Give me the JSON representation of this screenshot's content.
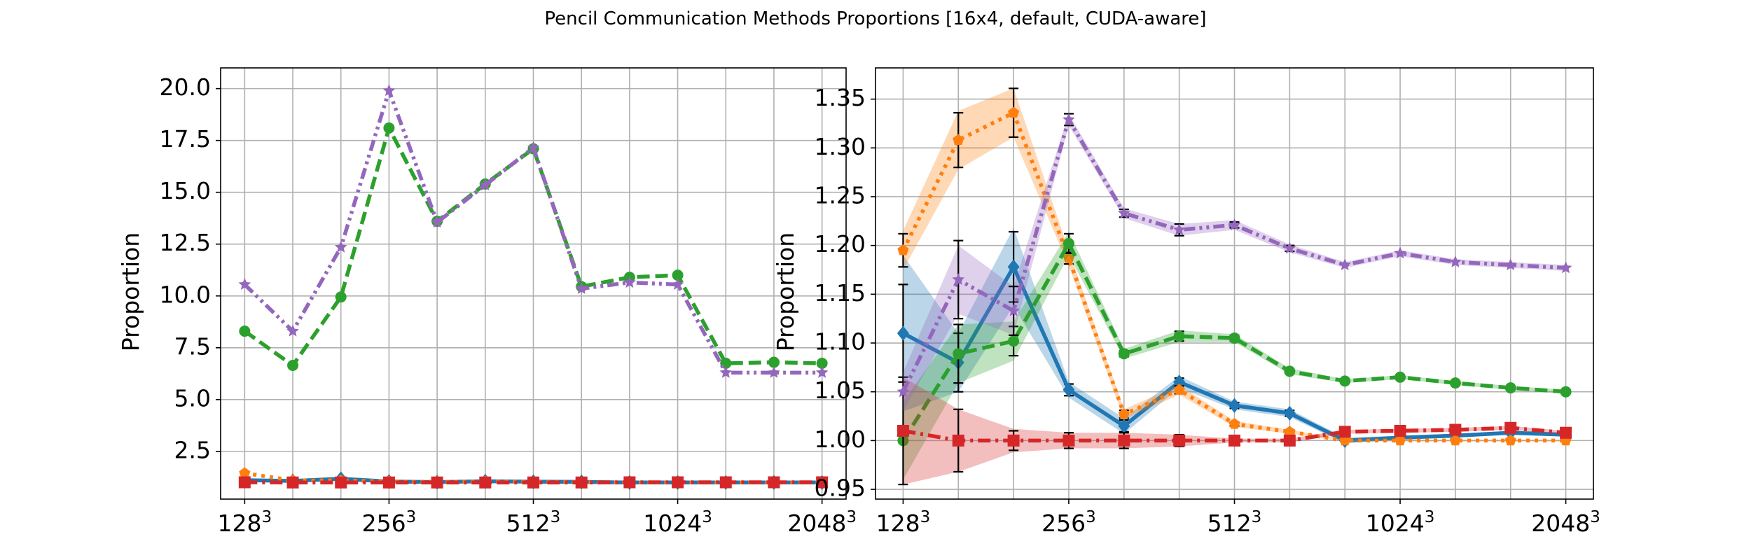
{
  "figure": {
    "title": "Pencil Communication Methods Proportions [16x4, default, CUDA-aware]"
  },
  "colors": {
    "blue": "#1f77b4",
    "orange": "#ff7f0e",
    "green": "#2ca02c",
    "red": "#d62728",
    "purple": "#9467bd"
  },
  "chart_data": [
    {
      "type": "line",
      "title": "",
      "xlabel": "",
      "ylabel": "Proportion",
      "x": [
        1,
        2,
        3,
        4,
        5,
        6,
        7,
        8,
        9,
        10,
        11,
        12,
        13
      ],
      "xticks": [
        {
          "x": 1,
          "base": "128",
          "exp": "3"
        },
        {
          "x": 4,
          "base": "256",
          "exp": "3"
        },
        {
          "x": 7,
          "base": "512",
          "exp": "3"
        },
        {
          "x": 10,
          "base": "1024",
          "exp": "3"
        },
        {
          "x": 13,
          "base": "2048",
          "exp": "3"
        }
      ],
      "xlim": [
        0.5,
        13.5
      ],
      "ylim": [
        0.2,
        21.0
      ],
      "yticks": [
        "2.5",
        "5.0",
        "7.5",
        "10.0",
        "12.5",
        "15.0",
        "17.5",
        "20.0"
      ],
      "grid": true,
      "series": [
        {
          "color": "blue",
          "style": "solid",
          "marker": "diamond",
          "values": [
            1.11,
            1.08,
            1.18,
            1.05,
            1.02,
            1.06,
            1.04,
            1.03,
            1.0,
            1.0,
            1.0,
            1.0,
            1.0
          ]
        },
        {
          "color": "orange",
          "style": "dotted",
          "marker": "pentagon",
          "values": [
            1.45,
            1.1,
            1.1,
            1.05,
            1.03,
            1.05,
            1.02,
            1.01,
            1.0,
            1.0,
            1.0,
            1.0,
            1.0
          ]
        },
        {
          "color": "green",
          "style": "dashed",
          "marker": "circle",
          "values": [
            8.3,
            6.65,
            9.95,
            18.1,
            13.6,
            15.4,
            17.1,
            10.45,
            10.9,
            11.0,
            6.75,
            6.8,
            6.75
          ]
        },
        {
          "color": "red",
          "style": "dashdot",
          "marker": "square",
          "values": [
            1.01,
            1.0,
            1.0,
            1.0,
            1.0,
            1.0,
            1.0,
            1.0,
            1.01,
            1.01,
            1.01,
            1.01,
            1.01
          ]
        },
        {
          "color": "purple",
          "style": "dashdotdot",
          "marker": "star",
          "values": [
            10.55,
            8.3,
            12.35,
            19.9,
            13.55,
            15.35,
            17.15,
            10.35,
            10.65,
            10.55,
            6.3,
            6.3,
            6.3
          ]
        }
      ]
    },
    {
      "type": "line",
      "title": "",
      "xlabel": "",
      "ylabel": "Proportion",
      "x": [
        1,
        2,
        3,
        4,
        5,
        6,
        7,
        8,
        9,
        10,
        11,
        12,
        13
      ],
      "xticks": [
        {
          "x": 1,
          "base": "128",
          "exp": "3"
        },
        {
          "x": 4,
          "base": "256",
          "exp": "3"
        },
        {
          "x": 7,
          "base": "512",
          "exp": "3"
        },
        {
          "x": 10,
          "base": "1024",
          "exp": "3"
        },
        {
          "x": 13,
          "base": "2048",
          "exp": "3"
        }
      ],
      "xlim": [
        0.5,
        13.5
      ],
      "ylim": [
        0.94,
        1.382
      ],
      "yticks": [
        "0.95",
        "1.00",
        "1.05",
        "1.10",
        "1.15",
        "1.20",
        "1.25",
        "1.30",
        "1.35"
      ],
      "grid": true,
      "series": [
        {
          "color": "blue",
          "style": "solid",
          "marker": "diamond",
          "values": [
            1.11,
            1.08,
            1.178,
            1.052,
            1.015,
            1.06,
            1.036,
            1.028,
            1.0,
            1.003,
            1.005,
            1.008,
            1.006
          ],
          "band": [
            0.08,
            0.03,
            0.04,
            0.008,
            0.008,
            0.006,
            0.004,
            0.004,
            0.003,
            0.002,
            0.002,
            0.002,
            0.002
          ],
          "errorbars": [
            0.05,
            0.03,
            0.036,
            0.006,
            0.006,
            0.004,
            0.003,
            0.003,
            0.0,
            0.0,
            0.0,
            0.0,
            0.0
          ]
        },
        {
          "color": "orange",
          "style": "dotted",
          "marker": "pentagon",
          "values": [
            1.195,
            1.308,
            1.336,
            1.187,
            1.027,
            1.052,
            1.017,
            1.009,
            1.0,
            1.0,
            1.0,
            1.0,
            1.0
          ],
          "band": [
            0.02,
            0.03,
            0.025,
            0.008,
            0.005,
            0.005,
            0.003,
            0.002,
            0.001,
            0.001,
            0.001,
            0.001,
            0.001
          ],
          "errorbars": [
            0.017,
            0.028,
            0.025,
            0.006,
            0.004,
            0.004,
            0.002,
            0.002,
            0.0,
            0.0,
            0.0,
            0.0,
            0.0
          ]
        },
        {
          "color": "green",
          "style": "dashed",
          "marker": "circle",
          "values": [
            1.0,
            1.089,
            1.102,
            1.202,
            1.089,
            1.107,
            1.105,
            1.071,
            1.061,
            1.065,
            1.059,
            1.054,
            1.05
          ],
          "band": [
            0.04,
            0.03,
            0.02,
            0.012,
            0.005,
            0.006,
            0.004,
            0.003,
            0.002,
            0.002,
            0.002,
            0.002,
            0.002
          ],
          "errorbars": [
            0.0,
            0.03,
            0.015,
            0.01,
            0.003,
            0.005,
            0.003,
            0.002,
            0.0,
            0.0,
            0.0,
            0.0,
            0.0
          ]
        },
        {
          "color": "red",
          "style": "dashdot",
          "marker": "square",
          "values": [
            1.01,
            1.0,
            1.0,
            1.0,
            1.0,
            1.0,
            1.0,
            1.0,
            1.009,
            1.01,
            1.011,
            1.013,
            1.008
          ],
          "band": [
            0.055,
            0.032,
            0.012,
            0.008,
            0.008,
            0.006,
            0.002,
            0.002,
            0.002,
            0.002,
            0.002,
            0.002,
            0.002
          ],
          "errorbars": [
            0.055,
            0.032,
            0.01,
            0.008,
            0.008,
            0.006,
            0.0,
            0.0,
            0.0,
            0.0,
            0.0,
            0.0,
            0.0
          ]
        },
        {
          "color": "purple",
          "style": "dashdotdot",
          "marker": "star",
          "values": [
            1.05,
            1.165,
            1.133,
            1.329,
            1.233,
            1.216,
            1.221,
            1.197,
            1.18,
            1.192,
            1.183,
            1.18,
            1.177
          ],
          "band": [
            0.02,
            0.035,
            0.025,
            0.006,
            0.005,
            0.006,
            0.005,
            0.004,
            0.003,
            0.003,
            0.003,
            0.003,
            0.003
          ],
          "errorbars": [
            0.0,
            0.04,
            0.025,
            0.006,
            0.004,
            0.006,
            0.003,
            0.003,
            0.0,
            0.0,
            0.0,
            0.0,
            0.0
          ]
        }
      ]
    }
  ]
}
